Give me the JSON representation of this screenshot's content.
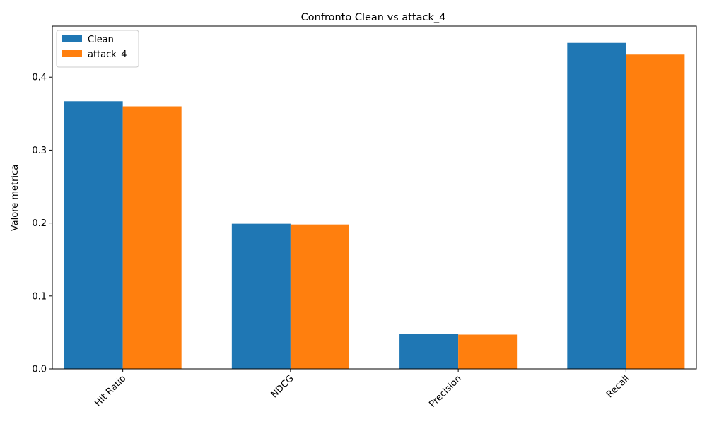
{
  "chart_data": {
    "type": "bar",
    "title": "Confronto Clean vs attack_4",
    "xlabel": "",
    "ylabel": "Valore metrica",
    "categories": [
      "Hit Ratio",
      "NDCG",
      "Precision",
      "Recall"
    ],
    "series": [
      {
        "name": "Clean",
        "color": "#1f77b4",
        "values": [
          0.367,
          0.199,
          0.048,
          0.447
        ]
      },
      {
        "name": "attack_4",
        "color": "#ff7f0e",
        "values": [
          0.36,
          0.198,
          0.047,
          0.431
        ]
      }
    ],
    "ylim": [
      0,
      0.47
    ],
    "yticks": [
      0.0,
      0.1,
      0.2,
      0.3,
      0.4
    ],
    "ytick_labels": [
      "0.0",
      "0.1",
      "0.2",
      "0.3",
      "0.4"
    ],
    "legend": "top-left",
    "grid": false
  }
}
